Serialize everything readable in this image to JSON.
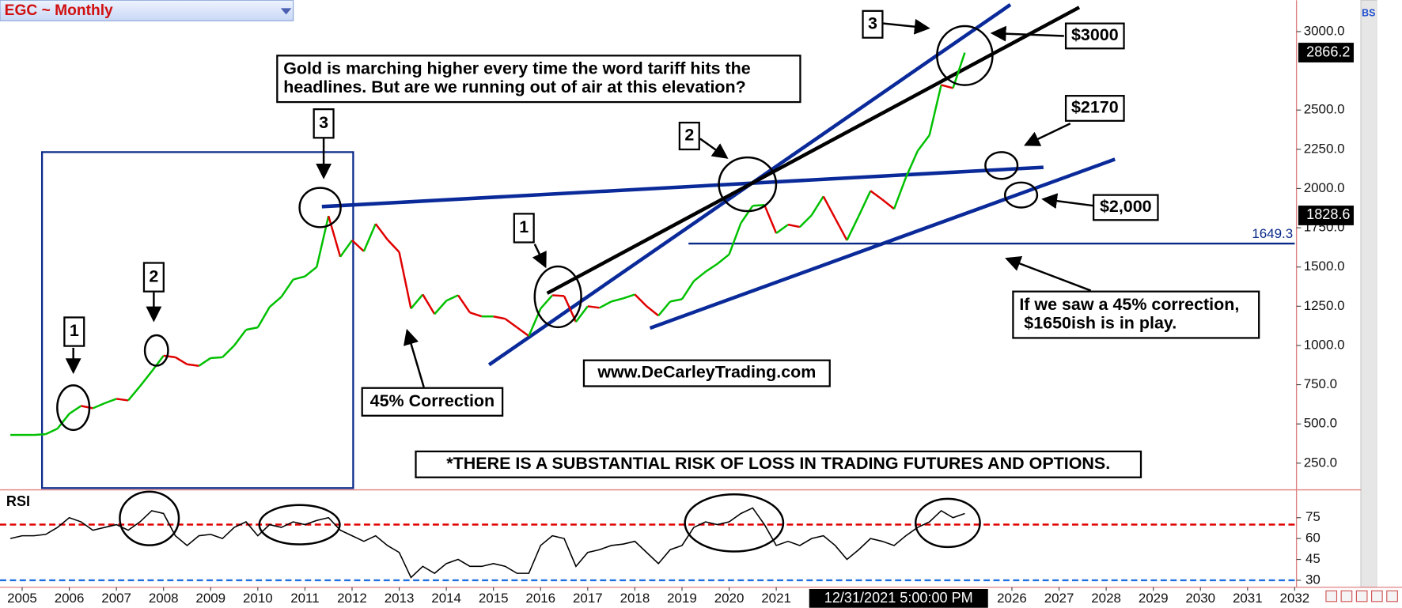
{
  "chart_data": [
    {
      "type": "line",
      "title": "EGC ~ Monthly",
      "corner_label": "BS",
      "x": [
        2004.75,
        2005,
        2005.25,
        2005.5,
        2005.75,
        2006,
        2006.25,
        2006.5,
        2006.75,
        2007,
        2007.25,
        2007.5,
        2007.75,
        2008,
        2008.25,
        2008.5,
        2008.75,
        2009,
        2009.25,
        2009.5,
        2009.75,
        2010,
        2010.25,
        2010.5,
        2010.75,
        2011,
        2011.25,
        2011.5,
        2011.75,
        2012,
        2012.25,
        2012.5,
        2012.75,
        2013,
        2013.25,
        2013.5,
        2013.75,
        2014,
        2014.25,
        2014.5,
        2014.75,
        2015,
        2015.25,
        2015.5,
        2015.75,
        2016,
        2016.25,
        2016.5,
        2016.75,
        2017,
        2017.25,
        2017.5,
        2017.75,
        2018,
        2018.25,
        2018.5,
        2018.75,
        2019,
        2019.25,
        2019.5,
        2019.75,
        2020,
        2020.25,
        2020.5,
        2020.75,
        2021,
        2021.25,
        2021.5,
        2021.75,
        2022,
        2022.25,
        2022.5,
        2022.75,
        2023,
        2023.25,
        2023.5,
        2023.75,
        2024,
        2024.25,
        2024.5,
        2024.75,
        2025
      ],
      "values": [
        430,
        430,
        430,
        435,
        470,
        565,
        615,
        600,
        632,
        660,
        650,
        740,
        835,
        935,
        925,
        880,
        870,
        920,
        925,
        1000,
        1100,
        1115,
        1245,
        1310,
        1420,
        1440,
        1500,
        1825,
        1565,
        1670,
        1600,
        1775,
        1675,
        1595,
        1235,
        1325,
        1200,
        1285,
        1320,
        1210,
        1185,
        1185,
        1170,
        1115,
        1060,
        1235,
        1320,
        1315,
        1150,
        1250,
        1240,
        1280,
        1300,
        1325,
        1250,
        1190,
        1280,
        1295,
        1410,
        1470,
        1520,
        1580,
        1780,
        1890,
        1895,
        1715,
        1770,
        1755,
        1830,
        1950,
        1810,
        1670,
        1825,
        1985,
        1930,
        1870,
        2070,
        2240,
        2340,
        2660,
        2640,
        2866
      ],
      "up_color": "#00c000",
      "down_color": "#e00000",
      "xlim": [
        2004.53,
        2032.0
      ],
      "xticks": [
        2005,
        2006,
        2007,
        2008,
        2009,
        2010,
        2011,
        2012,
        2013,
        2014,
        2015,
        2016,
        2017,
        2018,
        2019,
        2020,
        2021,
        2026,
        2027,
        2028,
        2029,
        2030,
        2031,
        2032
      ],
      "cursor_label": "12/31/2021 5:00:00 PM",
      "ylim": [
        80,
        3200
      ],
      "yticks": [
        {
          "value": 250,
          "label": "250.0"
        },
        {
          "value": 500,
          "label": "500.0"
        },
        {
          "value": 750,
          "label": "750.0"
        },
        {
          "value": 1000,
          "label": "1000.0"
        },
        {
          "value": 1250,
          "label": "1250.0"
        },
        {
          "value": 1500,
          "label": "1500.0"
        },
        {
          "value": 1750,
          "label": "1750.0"
        },
        {
          "value": 2000,
          "label": "2000.0"
        },
        {
          "value": 2250,
          "label": "2250.0"
        },
        {
          "value": 2500,
          "label": "2500.0"
        },
        {
          "value": 3000,
          "label": "3000.0"
        }
      ],
      "price_tags": [
        2866.2,
        1828.6
      ],
      "reference_line": 1649.3,
      "reference_color": "#0a2a8a",
      "annotations": [
        {
          "text": [
            "1"
          ]
        },
        {
          "text": [
            "2"
          ]
        },
        {
          "text": [
            "3"
          ]
        },
        {
          "text": [
            "1"
          ]
        },
        {
          "text": [
            "2"
          ]
        },
        {
          "text": [
            "3"
          ]
        },
        {
          "text": [
            "Gold is marching higher every time the word tariff hits the",
            "headlines. But are we running out of air at this elevation?"
          ]
        },
        {
          "text": [
            "45% Correction"
          ]
        },
        {
          "text": [
            "www.DeCarleyTrading.com"
          ]
        },
        {
          "text": [
            "$3000"
          ]
        },
        {
          "text": [
            "$2170"
          ]
        },
        {
          "text": [
            "$2,000"
          ]
        },
        {
          "text": [
            "If we saw a 45% correction,",
            " $1650ish is in play."
          ]
        },
        {
          "text": [
            "*THERE IS A SUBSTANTIAL RISK OF LOSS IN TRADING FUTURES AND OPTIONS."
          ]
        }
      ]
    },
    {
      "type": "line",
      "title": "RSI",
      "color": "#000000",
      "values": [
        60,
        62,
        62,
        63,
        68,
        75,
        72,
        66,
        68,
        70,
        66,
        72,
        80,
        78,
        62,
        55,
        62,
        63,
        60,
        68,
        72,
        62,
        70,
        68,
        72,
        70,
        73,
        75,
        66,
        62,
        58,
        62,
        55,
        50,
        32,
        40,
        35,
        42,
        45,
        40,
        40,
        42,
        40,
        35,
        35,
        55,
        62,
        60,
        40,
        50,
        52,
        55,
        56,
        58,
        50,
        42,
        52,
        55,
        68,
        72,
        70,
        72,
        78,
        82,
        70,
        55,
        58,
        55,
        60,
        62,
        55,
        45,
        52,
        60,
        58,
        55,
        62,
        68,
        72,
        80,
        75,
        78
      ],
      "ylim": [
        25,
        95
      ],
      "yticks": [
        30,
        45,
        60,
        75
      ],
      "levels": [
        {
          "value": 70,
          "color": "#e00000"
        },
        {
          "value": 30,
          "color": "#1e6fe0"
        }
      ]
    }
  ]
}
